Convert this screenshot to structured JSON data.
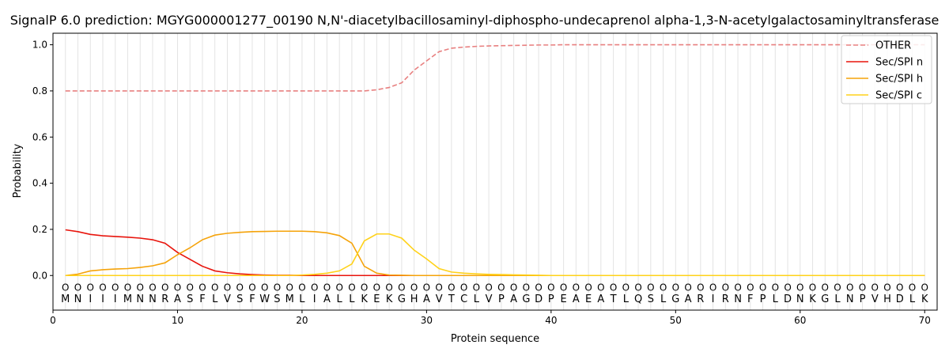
{
  "chart_data": {
    "type": "line",
    "title": "SignalP 6.0 prediction: MGYG000001277_00190 N,N'-diacetylbacillosaminyl-diphospho-undecaprenol alpha-1,3-N-acetylgalactosaminyltransferase",
    "xlabel": "Protein sequence",
    "ylabel": "Probability",
    "xlim": [
      0,
      71
    ],
    "ylim": [
      -0.15,
      1.05
    ],
    "xticks": [
      0,
      10,
      20,
      30,
      40,
      50,
      60,
      70
    ],
    "yticks": [
      0.0,
      0.2,
      0.4,
      0.6,
      0.8,
      1.0
    ],
    "ytick_labels": [
      "0.0",
      "0.2",
      "0.4",
      "0.6",
      "0.8",
      "1.0"
    ],
    "grid": "vertical lines at each residue",
    "legend_position": "top-right",
    "sequence": [
      "M",
      "N",
      "I",
      "I",
      "I",
      "M",
      "N",
      "N",
      "R",
      "A",
      "S",
      "F",
      "L",
      "V",
      "S",
      "F",
      "W",
      "S",
      "M",
      "L",
      "I",
      "A",
      "L",
      "L",
      "K",
      "E",
      "K",
      "G",
      "H",
      "A",
      "V",
      "T",
      "C",
      "L",
      "V",
      "P",
      "A",
      "G",
      "D",
      "P",
      "E",
      "A",
      "E",
      "A",
      "T",
      "L",
      "Q",
      "S",
      "L",
      "G",
      "A",
      "R",
      "I",
      "R",
      "N",
      "F",
      "P",
      "L",
      "D",
      "N",
      "K",
      "G",
      "L",
      "N",
      "P",
      "V",
      "H",
      "D",
      "L",
      "K"
    ],
    "marker_label": "O",
    "x": [
      1,
      2,
      3,
      4,
      5,
      6,
      7,
      8,
      9,
      10,
      11,
      12,
      13,
      14,
      15,
      16,
      17,
      18,
      19,
      20,
      21,
      22,
      23,
      24,
      25,
      26,
      27,
      28,
      29,
      30,
      31,
      32,
      33,
      34,
      35,
      36,
      37,
      38,
      39,
      40,
      41,
      42,
      43,
      44,
      45,
      46,
      47,
      48,
      49,
      50,
      51,
      52,
      53,
      54,
      55,
      56,
      57,
      58,
      59,
      60,
      61,
      62,
      63,
      64,
      65,
      66,
      67,
      68,
      69,
      70
    ],
    "series": [
      {
        "name": "OTHER",
        "color": "#e88080",
        "style": "dashed",
        "values": [
          0.8,
          0.8,
          0.8,
          0.8,
          0.8,
          0.8,
          0.8,
          0.8,
          0.8,
          0.8,
          0.8,
          0.8,
          0.8,
          0.8,
          0.8,
          0.8,
          0.8,
          0.8,
          0.8,
          0.8,
          0.8,
          0.8,
          0.8,
          0.8,
          0.8,
          0.805,
          0.815,
          0.835,
          0.89,
          0.93,
          0.97,
          0.985,
          0.99,
          0.993,
          0.995,
          0.996,
          0.997,
          0.998,
          0.999,
          0.999,
          1.0,
          1.0,
          1.0,
          1.0,
          1.0,
          1.0,
          1.0,
          1.0,
          1.0,
          1.0,
          1.0,
          1.0,
          1.0,
          1.0,
          1.0,
          1.0,
          1.0,
          1.0,
          1.0,
          1.0,
          1.0,
          1.0,
          1.0,
          1.0,
          1.0,
          1.0,
          1.0,
          1.0,
          1.0,
          1.0
        ]
      },
      {
        "name": "Sec/SPI n",
        "color": "#e8140c",
        "style": "solid",
        "values": [
          0.198,
          0.19,
          0.178,
          0.172,
          0.169,
          0.166,
          0.162,
          0.155,
          0.14,
          0.1,
          0.07,
          0.04,
          0.02,
          0.012,
          0.007,
          0.004,
          0.002,
          0.001,
          0.001,
          0,
          0,
          0,
          0,
          0,
          0,
          0,
          0,
          0,
          0,
          0,
          0,
          0,
          0,
          0,
          0,
          0,
          0,
          0,
          0,
          0,
          0,
          0,
          0,
          0,
          0,
          0,
          0,
          0,
          0,
          0,
          0,
          0,
          0,
          0,
          0,
          0,
          0,
          0,
          0,
          0,
          0,
          0,
          0,
          0,
          0,
          0,
          0,
          0,
          0,
          0
        ]
      },
      {
        "name": "Sec/SPI h",
        "color": "#f5a30a",
        "style": "solid",
        "values": [
          0.0,
          0.006,
          0.02,
          0.025,
          0.028,
          0.03,
          0.035,
          0.042,
          0.055,
          0.09,
          0.12,
          0.155,
          0.175,
          0.183,
          0.187,
          0.19,
          0.191,
          0.192,
          0.192,
          0.192,
          0.19,
          0.185,
          0.173,
          0.14,
          0.04,
          0.01,
          0.002,
          0.001,
          0,
          0,
          0,
          0,
          0,
          0,
          0,
          0,
          0,
          0,
          0,
          0,
          0,
          0,
          0,
          0,
          0,
          0,
          0,
          0,
          0,
          0,
          0,
          0,
          0,
          0,
          0,
          0,
          0,
          0,
          0,
          0,
          0,
          0,
          0,
          0,
          0,
          0,
          0,
          0,
          0,
          0
        ]
      },
      {
        "name": "Sec/SPI c",
        "color": "#ffd21a",
        "style": "solid",
        "values": [
          0,
          0,
          0,
          0,
          0,
          0,
          0,
          0,
          0,
          0,
          0,
          0,
          0,
          0,
          0,
          0,
          0,
          0,
          0,
          0.002,
          0.005,
          0.01,
          0.02,
          0.05,
          0.15,
          0.18,
          0.18,
          0.162,
          0.11,
          0.072,
          0.03,
          0.015,
          0.01,
          0.007,
          0.005,
          0.004,
          0.003,
          0.002,
          0.001,
          0,
          0,
          0,
          0,
          0,
          0,
          0,
          0,
          0,
          0,
          0,
          0,
          0,
          0,
          0,
          0,
          0,
          0,
          0,
          0,
          0,
          0,
          0,
          0,
          0,
          0,
          0,
          0,
          0,
          0,
          0
        ]
      }
    ]
  }
}
